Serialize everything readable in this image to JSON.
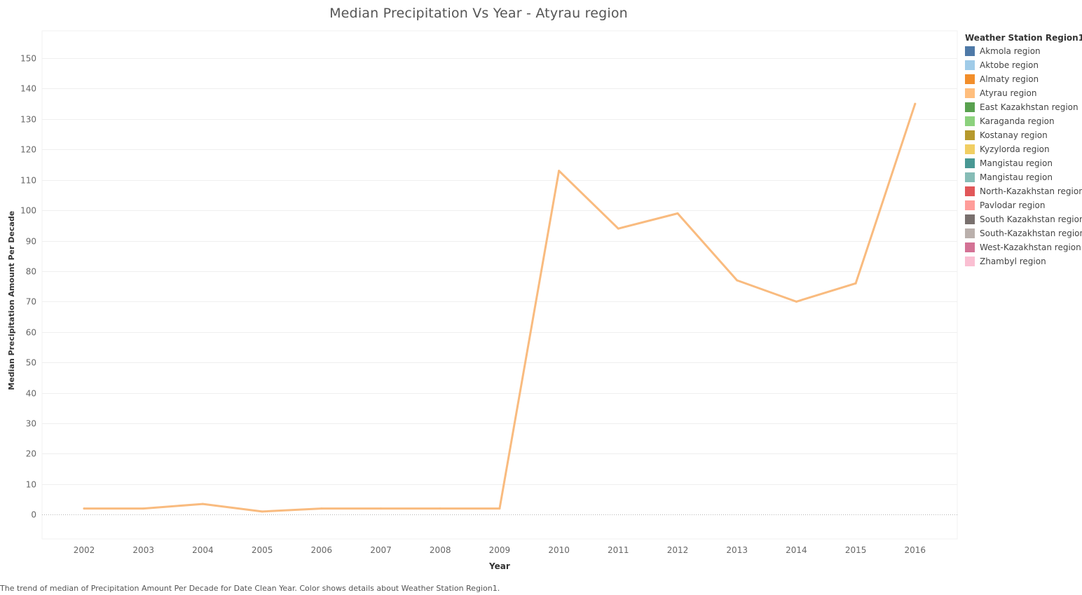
{
  "chart_data": {
    "type": "line",
    "title": "Median Precipitation Vs Year  - Atyrau region",
    "xlabel": "Year",
    "ylabel": "Median Precipitation Amount Per Decade",
    "categories": [
      "2002",
      "2003",
      "2004",
      "2005",
      "2006",
      "2007",
      "2008",
      "2009",
      "2010",
      "2011",
      "2012",
      "2013",
      "2014",
      "2015",
      "2016"
    ],
    "y_ticks": [
      0,
      10,
      20,
      30,
      40,
      50,
      60,
      70,
      80,
      90,
      100,
      110,
      120,
      130,
      140,
      150
    ],
    "ylim": [
      -8,
      159
    ],
    "grid": true,
    "series": [
      {
        "name": "Atyrau region",
        "color": "#f9bb7f",
        "values": [
          2,
          2,
          3.5,
          1,
          2,
          2,
          2,
          2,
          113,
          94,
          99,
          77,
          70,
          76,
          135
        ]
      }
    ],
    "legend": {
      "title": "Weather Station Region1",
      "placement": "right",
      "items": [
        {
          "label": "Akmola region",
          "color": "#4e79a7"
        },
        {
          "label": "Aktobe region",
          "color": "#a0cbe8"
        },
        {
          "label": "Almaty region",
          "color": "#f28e2b"
        },
        {
          "label": "Atyrau region",
          "color": "#ffbe7d"
        },
        {
          "label": "East Kazakhstan region",
          "color": "#59a14f"
        },
        {
          "label": "Karaganda region",
          "color": "#8cd17d"
        },
        {
          "label": "Kostanay region",
          "color": "#b6992d"
        },
        {
          "label": "Kyzylorda region",
          "color": "#f1ce63"
        },
        {
          "label": "Mangistau  region",
          "color": "#499894"
        },
        {
          "label": "Mangistau region",
          "color": "#86bcb6"
        },
        {
          "label": "North-Kazakhstan region",
          "color": "#e15759"
        },
        {
          "label": "Pavlodar region",
          "color": "#ff9d9a"
        },
        {
          "label": "South Kazakhstan region",
          "color": "#79706e"
        },
        {
          "label": "South-Kazakhstan region",
          "color": "#bab0ac"
        },
        {
          "label": "West-Kazakhstan region",
          "color": "#d37295"
        },
        {
          "label": "Zhambyl region",
          "color": "#fabfd2"
        }
      ]
    }
  },
  "caption": "The trend of median of Precipitation Amount Per Decade for Date Clean Year.  Color shows details about Weather Station Region1."
}
